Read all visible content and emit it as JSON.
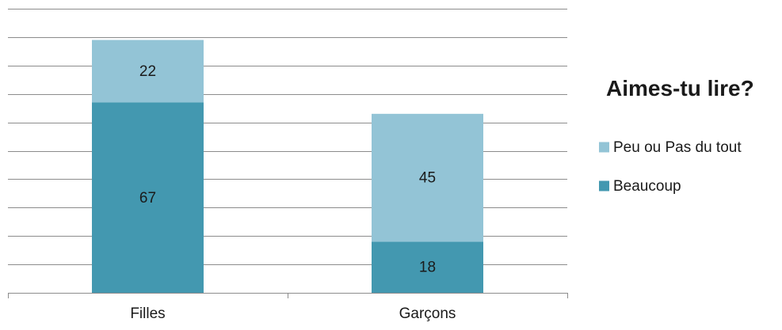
{
  "chart_data": {
    "type": "bar",
    "stacked": true,
    "title": "Aimes-tu lire?",
    "categories": [
      "Filles",
      "Garçons"
    ],
    "series": [
      {
        "name": "Beaucoup",
        "values": [
          67,
          18
        ],
        "color": "#4398B0"
      },
      {
        "name": "Peu ou Pas du tout",
        "values": [
          22,
          45
        ],
        "color": "#93C4D6"
      }
    ],
    "ylim": [
      0,
      100
    ],
    "gridlines": 11,
    "grid": true,
    "legend": "right",
    "legend_order": [
      "Peu ou Pas du tout",
      "Beaucoup"
    ],
    "data_labels": true
  }
}
